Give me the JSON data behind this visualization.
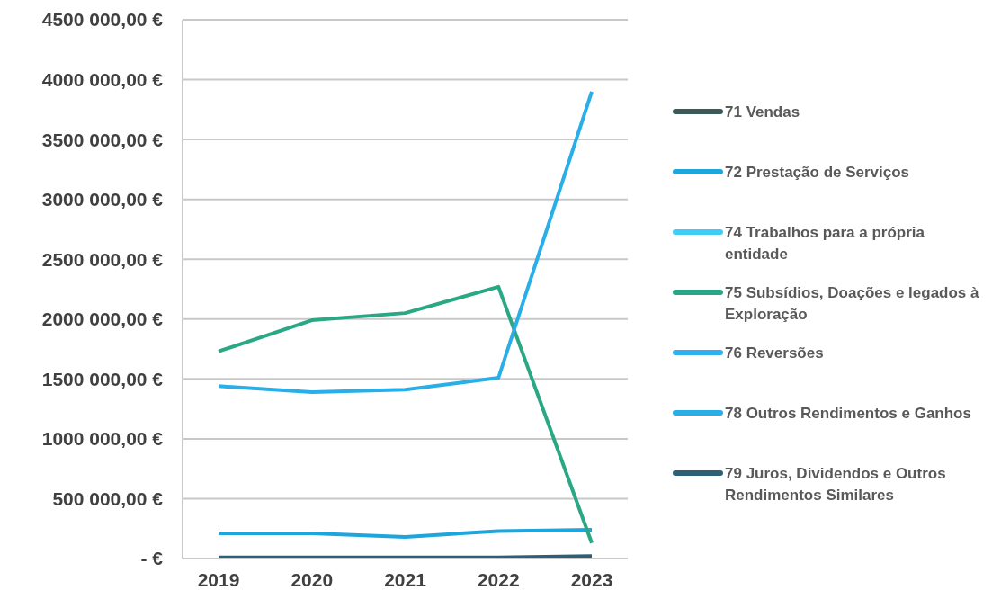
{
  "chart_data": {
    "type": "line",
    "categories": [
      "2019",
      "2020",
      "2021",
      "2022",
      "2023"
    ],
    "series": [
      {
        "name": "71 Vendas",
        "color": "#3b5a58",
        "values": [
          null,
          null,
          null,
          null,
          null
        ]
      },
      {
        "name": "72 Prestação de Serviços",
        "color": "#1ea6dc",
        "values": [
          210000,
          210000,
          180000,
          230000,
          240000
        ]
      },
      {
        "name": "74 Trabalhos para a própria entidade",
        "color": "#3fcdf8",
        "values": [
          null,
          null,
          null,
          null,
          null
        ]
      },
      {
        "name": "75 Subsídios, Doações e legados à Exploração",
        "color": "#2aa886",
        "values": [
          1730000,
          1990000,
          2050000,
          2270000,
          130000
        ]
      },
      {
        "name": "76 Reversões",
        "color": "#2cb3ef",
        "values": [
          null,
          null,
          null,
          null,
          null
        ]
      },
      {
        "name": "78 Outros Rendimentos e Ganhos",
        "color": "#2aaee8",
        "values": [
          1440000,
          1390000,
          1410000,
          1510000,
          3900000
        ]
      },
      {
        "name": "79 Juros, Dividendos e Outros Rendimentos Similares",
        "color": "#2e5f78",
        "values": [
          10000,
          10000,
          10000,
          10000,
          20000
        ]
      }
    ],
    "ylim": [
      0,
      4500000
    ],
    "yticks": [
      {
        "value": 0,
        "label": "-  €"
      },
      {
        "value": 500000,
        "label": "500 000,00 €"
      },
      {
        "value": 1000000,
        "label": "1000 000,00 €"
      },
      {
        "value": 1500000,
        "label": "1500 000,00 €"
      },
      {
        "value": 2000000,
        "label": "2000 000,00 €"
      },
      {
        "value": 2500000,
        "label": "2500 000,00 €"
      },
      {
        "value": 3000000,
        "label": "3000 000,00 €"
      },
      {
        "value": 3500000,
        "label": "3500 000,00 €"
      },
      {
        "value": 4000000,
        "label": "4000 000,00 €"
      },
      {
        "value": 4500000,
        "label": "4500 000,00 €"
      }
    ],
    "grid": "y",
    "legend": "right",
    "marker": "none"
  }
}
